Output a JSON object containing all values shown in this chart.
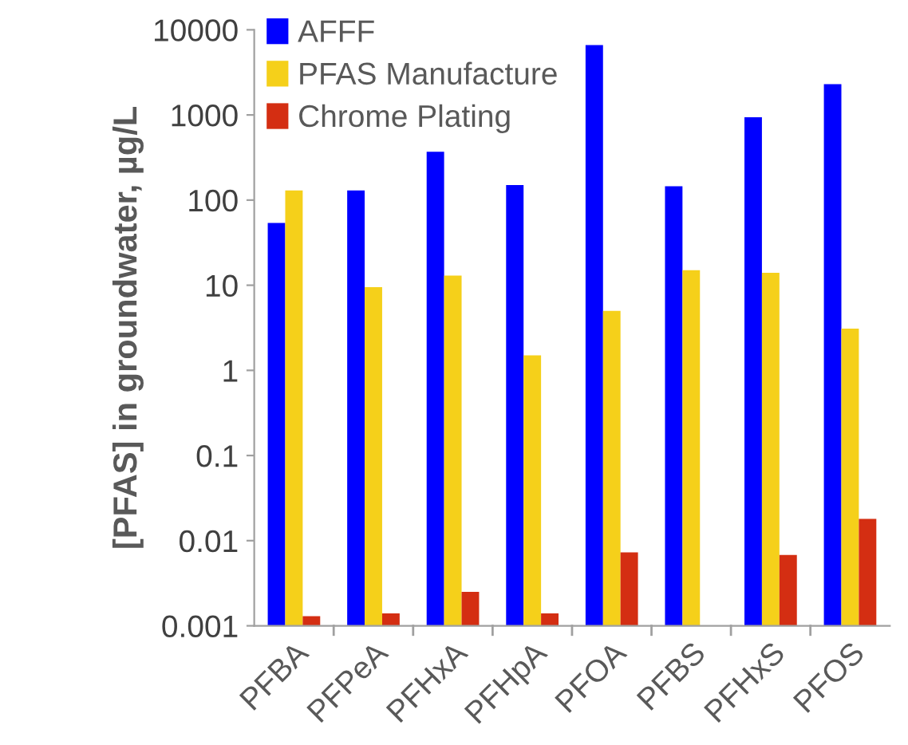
{
  "chart_data": {
    "type": "bar",
    "ylabel": "[PFAS] in groundwater, µg/L",
    "categories": [
      "PFBA",
      "PFPeA",
      "PFHxA",
      "PFHpA",
      "PFOA",
      "PFBS",
      "PFHxS",
      "PFOS"
    ],
    "series": [
      {
        "name": "AFFF",
        "color": "#0000ff",
        "values": [
          54,
          130,
          370,
          150,
          6600,
          145,
          940,
          2300
        ]
      },
      {
        "name": "PFAS Manufacture",
        "color": "#f5d01a",
        "values": [
          130,
          9.5,
          13,
          1.5,
          5,
          15,
          14,
          3.1
        ]
      },
      {
        "name": "Chrome Plating",
        "color": "#d42e12",
        "values": [
          0.0013,
          0.0014,
          0.0025,
          0.0014,
          0.0073,
          null,
          0.0068,
          0.018
        ]
      }
    ],
    "log": true,
    "ylim": [
      0.001,
      10000
    ],
    "yticks": [
      0.001,
      0.01,
      0.1,
      1,
      10,
      100,
      1000,
      10000
    ],
    "grid": false,
    "legend": "top left"
  }
}
